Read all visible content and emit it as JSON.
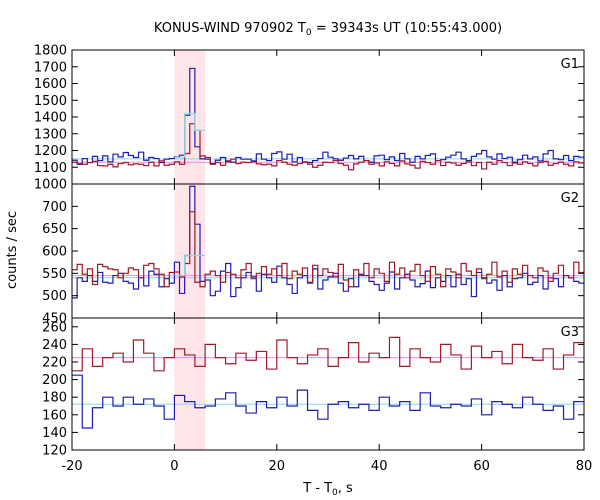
{
  "chart_data": {
    "type": "line",
    "title": {
      "prefix": "KONUS-WIND 970902 T",
      "sub": "0",
      "suffix": " = 39343s UT (10:55:43.000)"
    },
    "xlabel": {
      "prefix": "T - T",
      "sub": "0",
      "suffix": ", s"
    },
    "ylabel": "counts / sec",
    "xlim": [
      -20,
      80
    ],
    "xticks": [
      -20,
      0,
      20,
      40,
      60,
      80
    ],
    "highlight_interval": [
      0,
      6
    ],
    "highlight_color": "#ffe4e8",
    "panels": [
      {
        "label": "G1",
        "ylim": [
          1000,
          1800
        ],
        "yticks": [
          1000,
          1100,
          1200,
          1300,
          1400,
          1500,
          1600,
          1700,
          1800
        ],
        "bin_start": -20,
        "bin_width": 1,
        "series": [
          {
            "color": "#1c1cb4",
            "level": 1150,
            "level_color": "#88d8e8",
            "values": [
              1142,
              1118,
              1152,
              1128,
              1165,
              1140,
              1168,
              1132,
              1178,
              1162,
              1188,
              1170,
              1158,
              1190,
              1142,
              1158,
              1152,
              1128,
              1148,
              1152,
              1162,
              1172,
              1410,
              1690,
              1222,
              1150,
              1148,
              1122,
              1142,
              1158,
              1138,
              1130,
              1158,
              1148,
              1148,
              1138,
              1180,
              1148,
              1140,
              1182,
              1192,
              1148,
              1178,
              1132,
              1158,
              1132,
              1128,
              1140,
              1152,
              1190,
              1160,
              1150,
              1142,
              1155,
              1170,
              1150,
              1165,
              1140,
              1130,
              1168,
              1172,
              1145,
              1162,
              1140,
              1182,
              1150,
              1130,
              1165,
              1150,
              1170,
              1180,
              1140,
              1145,
              1160,
              1172,
              1190,
              1150,
              1140,
              1165,
              1180,
              1200,
              1162,
              1148,
              1180,
              1152,
              1160,
              1130,
              1145,
              1172,
              1150,
              1162,
              1138,
              1180,
              1200,
              1150,
              1145,
              1170,
              1140,
              1165,
              1160
            ]
          },
          {
            "color": "#a01a28",
            "level": 1130,
            "level_color": "#ee88ee",
            "values": [
              1130,
              1122,
              1118,
              1128,
              1135,
              1110,
              1108,
              1118,
              1102,
              1122,
              1128,
              1115,
              1120,
              1118,
              1110,
              1130,
              1108,
              1138,
              1112,
              1118,
              1132,
              1118,
              1182,
              1360,
              1320,
              1168,
              1158,
              1118,
              1128,
              1112,
              1132,
              1148,
              1122,
              1130,
              1128,
              1132,
              1120,
              1115,
              1118,
              1108,
              1140,
              1130,
              1118,
              1112,
              1122,
              1130,
              1118,
              1100,
              1112,
              1130,
              1128,
              1140,
              1122,
              1112,
              1085,
              1120,
              1130,
              1140,
              1118,
              1125,
              1108,
              1132,
              1122,
              1108,
              1138,
              1120,
              1112,
              1095,
              1135,
              1128,
              1118,
              1140,
              1110,
              1130,
              1125,
              1112,
              1122,
              1132,
              1110,
              1128,
              1090,
              1130,
              1118,
              1140,
              1128,
              1110,
              1125,
              1118,
              1132,
              1122,
              1108,
              1128,
              1135,
              1112,
              1122,
              1130,
              1118,
              1108,
              1132,
              1125
            ]
          },
          {
            "color": "#88d8e8",
            "level": 1150,
            "level_color": "#88d8e8",
            "values": [
              null,
              null,
              null,
              null,
              null,
              null,
              null,
              null,
              null,
              null,
              null,
              null,
              null,
              null,
              null,
              null,
              null,
              null,
              null,
              null,
              1160,
              1160,
              1420,
              1420,
              1320,
              1320,
              null,
              null,
              null,
              null,
              null,
              null,
              null,
              null,
              null,
              null,
              null,
              null,
              null,
              null,
              null,
              null,
              null,
              null,
              null,
              null,
              null,
              null,
              null,
              null,
              null,
              null,
              null,
              null,
              null,
              null,
              null,
              null,
              null,
              null,
              null,
              null,
              null,
              null,
              null,
              null,
              null,
              null,
              null,
              null,
              null,
              null,
              null,
              null,
              null,
              null,
              null,
              null,
              null,
              null,
              null,
              null,
              null,
              null,
              null,
              null,
              null,
              null,
              null,
              null,
              null,
              null,
              null,
              null,
              null,
              null,
              null,
              null,
              null,
              null
            ]
          }
        ]
      },
      {
        "label": "G2",
        "ylim": [
          450,
          750
        ],
        "yticks": [
          450,
          500,
          550,
          600,
          650,
          700
        ],
        "bin_start": -20,
        "bin_width": 1,
        "series": [
          {
            "color": "#1c1cb4",
            "level": 540,
            "level_color": "#88d8e8",
            "values": [
              495,
              540,
              532,
              545,
              532,
              552,
              530,
              528,
              545,
              550,
              532,
              528,
              515,
              540,
              522,
              555,
              548,
              520,
              538,
              528,
              575,
              505,
              590,
              745,
              660,
              532,
              535,
              500,
              510,
              555,
              572,
              498,
              518,
              540,
              552,
              542,
              510,
              548,
              540,
              530,
              566,
              540,
              525,
              505,
              540,
              545,
              528,
              560,
              515,
              535,
              542,
              550,
              528,
              510,
              538,
              520,
              548,
              545,
              532,
              525,
              512,
              528,
              553,
              515,
              540,
              548,
              535,
              520,
              527,
              555,
              518,
              540,
              532,
              545,
              520,
              548,
              525,
              538,
              498,
              552,
              540,
              528,
              535,
              512,
              545,
              520,
              538,
              540,
              550,
              525,
              530,
              545,
              515,
              540,
              538,
              520,
              545,
              540,
              532,
              528
            ]
          },
          {
            "color": "#a01a28",
            "level": 545,
            "level_color": "#ee88ee",
            "values": [
              558,
              570,
              548,
              560,
              525,
              570,
              565,
              560,
              558,
              540,
              550,
              562,
              558,
              540,
              568,
              572,
              560,
              548,
              520,
              552,
              553,
              542,
              572,
              688,
              530,
              520,
              548,
              555,
              545,
              530,
              552,
              548,
              540,
              558,
              572,
              538,
              550,
              565,
              548,
              560,
              545,
              572,
              538,
              555,
              548,
              562,
              530,
              568,
              545,
              560,
              552,
              542,
              570,
              535,
              520,
              558,
              545,
              572,
              540,
              560,
              550,
              532,
              575,
              548,
              562,
              540,
              555,
              570,
              545,
              532,
              565,
              548,
              520,
              560,
              553,
              540,
              572,
              555,
              545,
              560,
              538,
              548,
              575,
              542,
              555,
              530,
              560,
              548,
              568,
              545,
              540,
              562,
              555,
              532,
              550,
              568,
              545,
              540,
              575,
              552
            ]
          },
          {
            "color": "#88d8e8",
            "level": 540,
            "level_color": "#88d8e8",
            "values": [
              null,
              null,
              null,
              null,
              null,
              null,
              null,
              null,
              null,
              null,
              null,
              null,
              null,
              null,
              null,
              null,
              null,
              null,
              null,
              null,
              545,
              545,
              590,
              590,
              590,
              590,
              null,
              null,
              null,
              null,
              null,
              null,
              null,
              null,
              null,
              null,
              null,
              null,
              null,
              null,
              null,
              null,
              null,
              null,
              null,
              null,
              null,
              null,
              null,
              null,
              null,
              null,
              null,
              null,
              null,
              null,
              null,
              null,
              null,
              null,
              null,
              null,
              null,
              null,
              null,
              null,
              null,
              null,
              null,
              null,
              null,
              null,
              null,
              null,
              null,
              null,
              null,
              null,
              null,
              null,
              null,
              null,
              null,
              null,
              null,
              null,
              null,
              null,
              null,
              null,
              null,
              null,
              null,
              null,
              null,
              null,
              null,
              null,
              null,
              null
            ]
          }
        ]
      },
      {
        "label": "G3",
        "ylim": [
          120,
          270
        ],
        "yticks": [
          120,
          140,
          160,
          180,
          200,
          220,
          240,
          260
        ],
        "bin_start": -20,
        "bin_width": 2,
        "series": [
          {
            "color": "#1c1cb4",
            "level": 172,
            "level_color": "#88d8e8",
            "values": [
              205,
              145,
              168,
              180,
              170,
              180,
              172,
              178,
              170,
              155,
              182,
              175,
              168,
              170,
              178,
              185,
              170,
              162,
              175,
              168,
              180,
              170,
              188,
              165,
              155,
              172,
              175,
              168,
              172,
              165,
              180,
              170,
              175,
              165,
              185,
              170,
              168,
              172,
              170,
              178,
              160,
              175,
              172,
              168,
              180,
              172,
              165,
              170,
              155,
              175
            ]
          },
          {
            "color": "#a01a28",
            "level": 225,
            "level_color": "#ee88ee",
            "values": [
              210,
              235,
              215,
              225,
              230,
              220,
              245,
              230,
              210,
              225,
              235,
              228,
              215,
              240,
              225,
              218,
              230,
              222,
              232,
              212,
              245,
              225,
              218,
              228,
              235,
              215,
              225,
              242,
              220,
              230,
              225,
              248,
              215,
              235,
              225,
              220,
              240,
              228,
              212,
              238,
              225,
              232,
              218,
              240,
              225,
              222,
              235,
              212,
              228,
              242
            ]
          }
        ]
      }
    ]
  }
}
